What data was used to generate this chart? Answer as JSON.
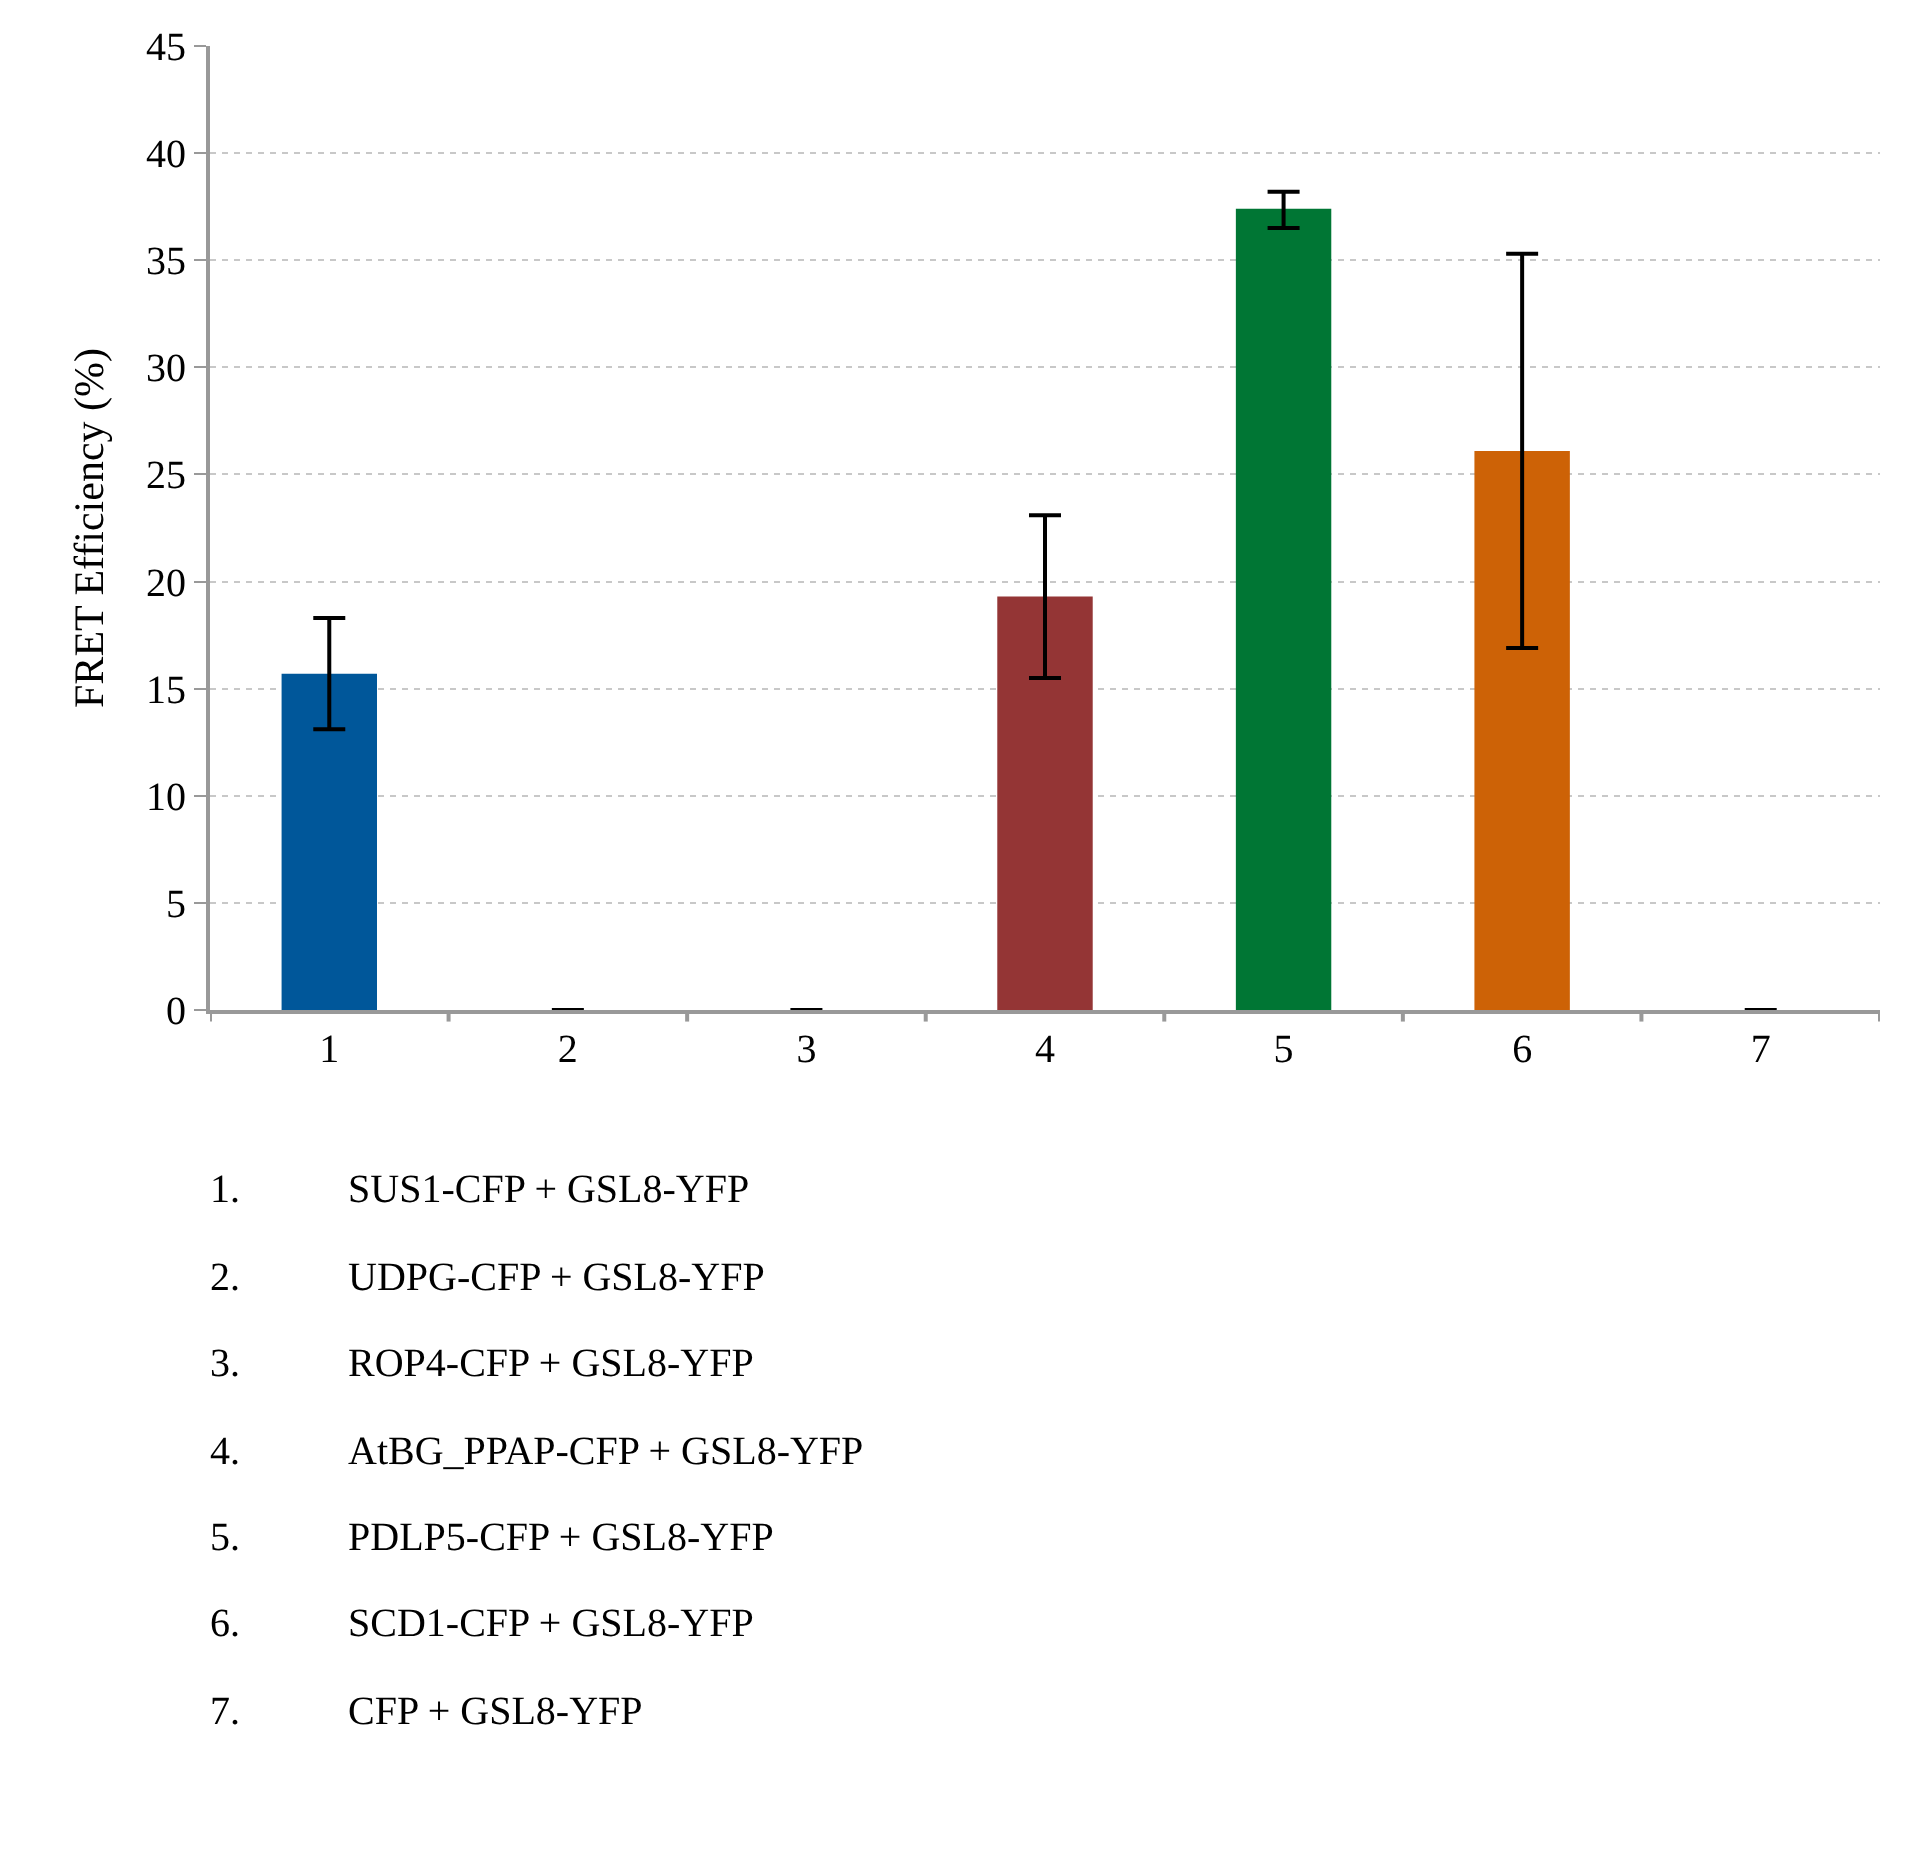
{
  "chart_data": {
    "type": "bar",
    "ylabel": "FRET Efficiency (%)",
    "categories": [
      "1",
      "2",
      "3",
      "4",
      "5",
      "6",
      "7"
    ],
    "values": [
      15.7,
      0,
      0,
      19.3,
      37.4,
      26.1,
      0
    ],
    "colors": [
      "#00579a",
      "#d9d9d9",
      "#d9d9d9",
      "#943535",
      "#007634",
      "#cd6206",
      "#d9d9d9"
    ],
    "errors": [
      2.6,
      null,
      null,
      3.8,
      [
        36.5,
        38.2
      ],
      9.2,
      null
    ],
    "ylim": [
      0,
      45
    ],
    "yticks": [
      0,
      5,
      10,
      15,
      20,
      25,
      30,
      35,
      40,
      45
    ],
    "grid": "y",
    "legend": false,
    "annotations": [
      "1. SUS1-CFP + GSL8-YFP",
      "2. UDPG-CFP + GSL8-YFP",
      "3. ROP4-CFP + GSL8-YFP",
      "4. AtBG_PPAP-CFP + GSL8-YFP",
      "5. PDLP5-CFP + GSL8-YFP",
      "6. SCD1-CFP + GSL8-YFP",
      "7. CFP + GSL8-YFP"
    ]
  }
}
